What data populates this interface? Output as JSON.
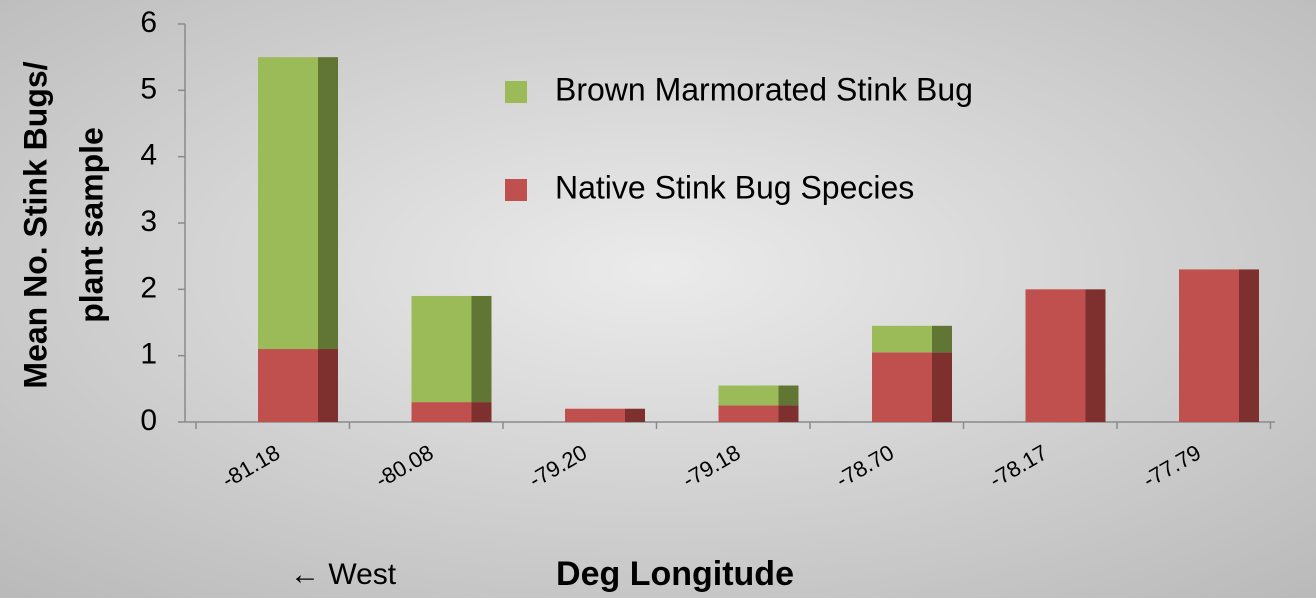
{
  "chart_data": {
    "type": "bar",
    "stacked": true,
    "ylabel": [
      "Mean No. Stink Bugs/",
      "plant sample"
    ],
    "xlabel": "Deg Longitude",
    "annotation": "← West",
    "categories": [
      "-81.18",
      "-80.08",
      "-79.20",
      "-79.18",
      "-78.70",
      "-78.17",
      "-77.79"
    ],
    "series": [
      {
        "name": "Native Stink Bug Species",
        "color": "#c0504d",
        "side_color": "#7d302e",
        "values": [
          1.1,
          0.3,
          0.2,
          0.25,
          1.05,
          2.0,
          2.3
        ]
      },
      {
        "name": "Brown Marmorated Stink Bug",
        "color": "#9bbb59",
        "side_color": "#617634",
        "values": [
          4.4,
          1.6,
          0,
          0.3,
          0.4,
          0,
          0
        ]
      }
    ],
    "ylim": [
      0,
      6
    ],
    "yticks": [
      0,
      1,
      2,
      3,
      4,
      5,
      6
    ],
    "grid": false,
    "legend": "upper center"
  }
}
